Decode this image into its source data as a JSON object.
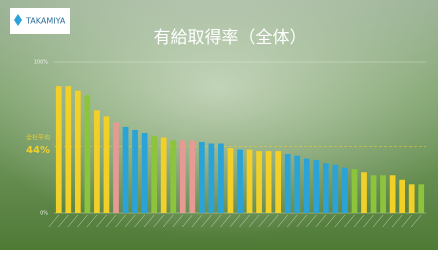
{
  "brand": "TAKAMIYA",
  "chart_data": {
    "type": "bar",
    "title": "有給取得率（全体）",
    "categories": [
      null,
      null,
      null,
      null,
      null,
      null,
      null,
      null,
      null,
      null,
      null,
      null,
      null,
      null,
      null,
      null,
      null,
      null,
      null,
      null,
      null,
      null,
      null,
      null,
      null,
      null,
      null,
      null,
      null,
      null,
      null,
      null,
      null,
      null,
      null,
      null,
      null,
      null,
      null
    ],
    "values": [
      84,
      84,
      81,
      78,
      68,
      64,
      60,
      57,
      55,
      53,
      51,
      50,
      48,
      48,
      48,
      47,
      46,
      46,
      43,
      42,
      42,
      41,
      41,
      41,
      39,
      38,
      36,
      35,
      33,
      32,
      30,
      29,
      27,
      25,
      25,
      25,
      22,
      19,
      19
    ],
    "colors": [
      "#f2d027",
      "#f2d027",
      "#f2d027",
      "#8cc43c",
      "#f2d027",
      "#f2d027",
      "#e79a94",
      "#2aa3d8",
      "#2aa3d8",
      "#2aa3d8",
      "#8cc43c",
      "#f2d027",
      "#8cc43c",
      "#e79a94",
      "#e79a94",
      "#2aa3d8",
      "#2aa3d8",
      "#2aa3d8",
      "#f2d027",
      "#2aa3d8",
      "#f2d027",
      "#f2d027",
      "#f2d027",
      "#f2d027",
      "#2aa3d8",
      "#2aa3d8",
      "#2aa3d8",
      "#2aa3d8",
      "#2aa3d8",
      "#2aa3d8",
      "#2aa3d8",
      "#8cc43c",
      "#f2d027",
      "#8cc43c",
      "#8cc43c",
      "#f2d027",
      "#f2d027",
      "#f2d027",
      "#8cc43c"
    ],
    "ylim": [
      0,
      100
    ],
    "yticks": [
      {
        "value": 0,
        "label": "0%"
      },
      {
        "value": 100,
        "label": "100%"
      }
    ],
    "grid": true,
    "average": 44,
    "average_label": "44%",
    "average_title": "全社平均"
  }
}
